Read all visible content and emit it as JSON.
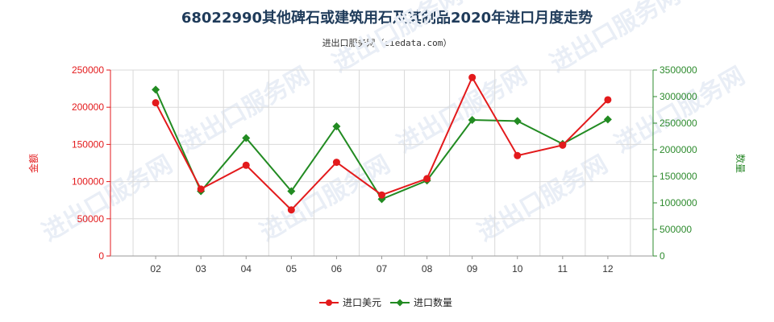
{
  "title": "68022990其他碑石或建筑用石及其制品2020年进口月度走势",
  "subtitle": "进出口服务网（ciedata.com）",
  "watermark": "进出口服务网",
  "colors": {
    "left_axis": "#e31a1c",
    "right_axis": "#2e8b2e",
    "series_amount": "#e31a1c",
    "series_qty": "#228b22",
    "grid": "#d9d9d9",
    "axis": "#999999"
  },
  "chart_data": {
    "type": "line",
    "categories": [
      "02",
      "03",
      "04",
      "05",
      "06",
      "07",
      "08",
      "09",
      "10",
      "11",
      "12"
    ],
    "y_left": {
      "label": "金额",
      "min": 0,
      "max": 250000,
      "ticks": [
        0,
        50000,
        100000,
        150000,
        200000,
        250000
      ]
    },
    "y_right": {
      "label": "数量",
      "min": 0,
      "max": 3500000,
      "ticks": [
        0,
        500000,
        1000000,
        1500000,
        2000000,
        2500000,
        3000000,
        3500000
      ]
    },
    "grid": true,
    "legend_position": "bottom",
    "series": [
      {
        "name": "进口美元",
        "axis": "left",
        "marker": "circle",
        "values": [
          206000,
          90000,
          122000,
          62000,
          126000,
          82000,
          104000,
          240000,
          135000,
          149000,
          210000
        ]
      },
      {
        "name": "进口数量",
        "axis": "right",
        "marker": "diamond",
        "values": [
          3130000,
          1220000,
          2220000,
          1220000,
          2440000,
          1070000,
          1420000,
          2560000,
          2540000,
          2110000,
          2570000
        ]
      }
    ]
  }
}
